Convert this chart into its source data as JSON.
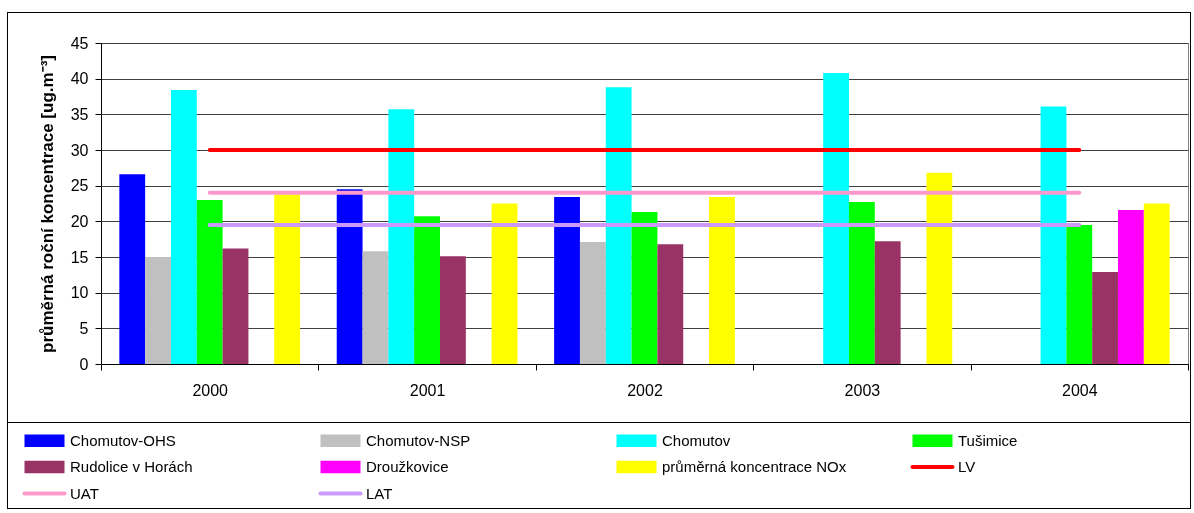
{
  "chart_data": {
    "type": "bar",
    "categories": [
      "2000",
      "2001",
      "2002",
      "2003",
      "2004"
    ],
    "ylabel": "průměrná roční koncentrace [ug.m⁻³]",
    "ylim": [
      0,
      45
    ],
    "yticks": [
      0,
      5,
      10,
      15,
      20,
      25,
      30,
      35,
      40,
      45
    ],
    "grid": "y",
    "legend": "bottom",
    "series": [
      {
        "name": "Chomutov-OHS",
        "color": "#0000ff",
        "values": [
          26.6,
          24.5,
          23.4,
          null,
          null
        ]
      },
      {
        "name": "Chomutov-NSP",
        "color": "#c0c0c0",
        "values": [
          15.0,
          15.8,
          17.1,
          null,
          null
        ]
      },
      {
        "name": "Chomutov",
        "color": "#00ffff",
        "values": [
          38.4,
          35.7,
          38.8,
          40.8,
          36.1
        ]
      },
      {
        "name": "Tušimice",
        "color": "#00ff00",
        "values": [
          23.0,
          20.7,
          21.3,
          22.7,
          19.5
        ]
      },
      {
        "name": "Rudolice v Horách",
        "color": "#993366",
        "values": [
          16.2,
          15.1,
          16.8,
          17.2,
          12.9
        ]
      },
      {
        "name": "Droužkovice",
        "color": "#ff00ff",
        "values": [
          null,
          null,
          null,
          null,
          21.6
        ]
      },
      {
        "name": "průměrná koncentrace NOx",
        "color": "#ffff00",
        "values": [
          23.8,
          22.5,
          23.4,
          26.8,
          22.5
        ]
      },
      {
        "name": "LV",
        "type": "line",
        "color": "#ff0000",
        "values": [
          30,
          30,
          30,
          30,
          30
        ]
      },
      {
        "name": "UAT",
        "type": "line",
        "color": "#ff99cc",
        "values": [
          24,
          24,
          24,
          24,
          24
        ]
      },
      {
        "name": "LAT",
        "type": "line",
        "color": "#cc99ff",
        "values": [
          19.5,
          19.5,
          19.5,
          19.5,
          19.5
        ]
      }
    ]
  }
}
